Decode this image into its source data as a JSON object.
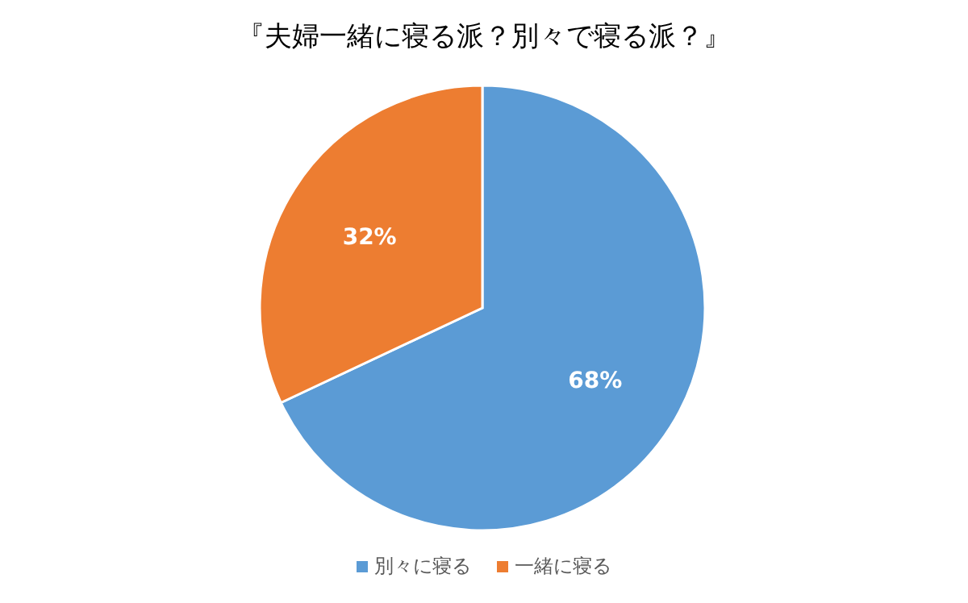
{
  "chart_data": {
    "type": "pie",
    "title": "『夫婦一緒に寝る派？別々で寝る派？』",
    "categories": [
      "別々に寝る",
      "一緒に寝る"
    ],
    "values": [
      68,
      32
    ],
    "colors": [
      "#5b9bd5",
      "#ed7d31"
    ],
    "value_labels": [
      "68%",
      "32%"
    ],
    "legend": "bottom"
  }
}
